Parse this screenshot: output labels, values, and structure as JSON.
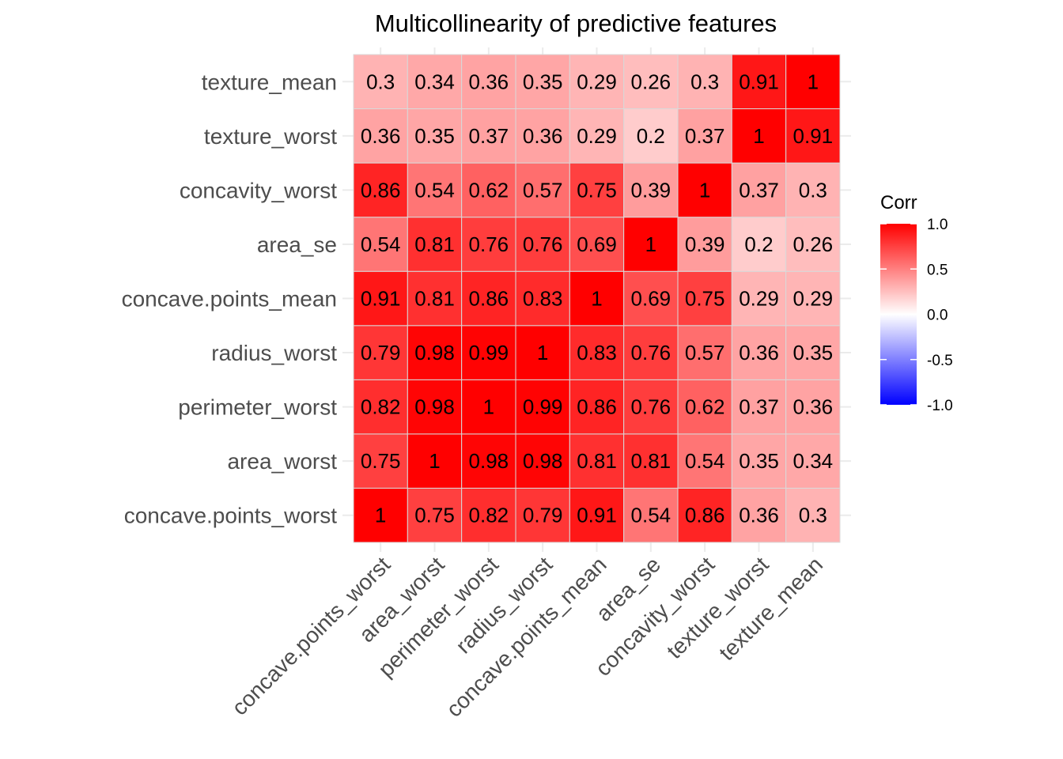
{
  "chart_data": {
    "type": "heatmap",
    "title": "Multicollinearity of predictive features",
    "x_categories": [
      "concave.points_worst",
      "area_worst",
      "perimeter_worst",
      "radius_worst",
      "concave.points_mean",
      "area_se",
      "concavity_worst",
      "texture_worst",
      "texture_mean"
    ],
    "y_categories": [
      "concave.points_worst",
      "area_worst",
      "perimeter_worst",
      "radius_worst",
      "concave.points_mean",
      "area_se",
      "concavity_worst",
      "texture_worst",
      "texture_mean"
    ],
    "values": [
      [
        1,
        0.75,
        0.82,
        0.79,
        0.91,
        0.54,
        0.86,
        0.36,
        0.3
      ],
      [
        0.75,
        1,
        0.98,
        0.98,
        0.81,
        0.81,
        0.54,
        0.35,
        0.34
      ],
      [
        0.82,
        0.98,
        1,
        0.99,
        0.86,
        0.76,
        0.62,
        0.37,
        0.36
      ],
      [
        0.79,
        0.98,
        0.99,
        1,
        0.83,
        0.76,
        0.57,
        0.36,
        0.35
      ],
      [
        0.91,
        0.81,
        0.86,
        0.83,
        1,
        0.69,
        0.75,
        0.29,
        0.29
      ],
      [
        0.54,
        0.81,
        0.76,
        0.76,
        0.69,
        1,
        0.39,
        0.2,
        0.26
      ],
      [
        0.86,
        0.54,
        0.62,
        0.57,
        0.75,
        0.39,
        1,
        0.37,
        0.3
      ],
      [
        0.36,
        0.35,
        0.37,
        0.36,
        0.29,
        0.2,
        0.37,
        1,
        0.91
      ],
      [
        0.3,
        0.34,
        0.36,
        0.35,
        0.29,
        0.26,
        0.3,
        0.91,
        1
      ]
    ],
    "value_range": [
      -1,
      1
    ],
    "legend": {
      "title": "Corr",
      "position": "right",
      "ticks": [
        "1.0",
        "0.5",
        "0.0",
        "-0.5",
        "-1.0"
      ],
      "tick_values": [
        1,
        0.5,
        0,
        -0.5,
        -1
      ]
    },
    "colors": {
      "low": "#0000ff",
      "mid": "#ffffff",
      "high": "#ff0000"
    },
    "grid": true
  }
}
